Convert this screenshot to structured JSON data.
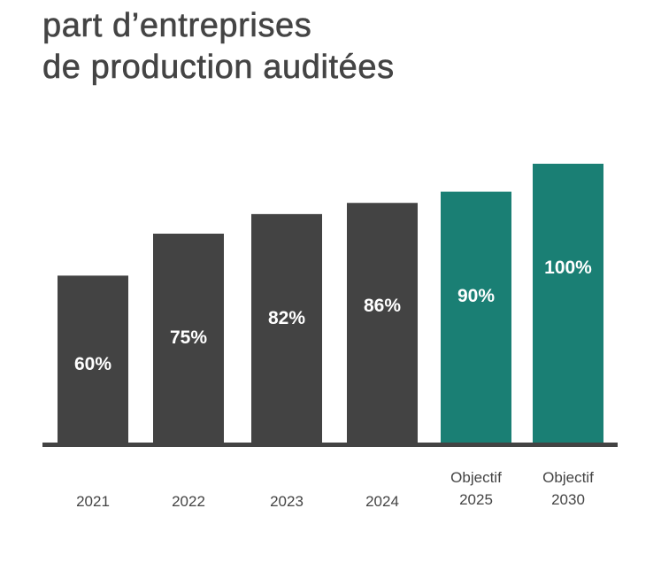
{
  "chart_data": {
    "type": "bar",
    "title": [
      "part d’entreprises",
      "de production auditées"
    ],
    "categories": [
      [
        "2021"
      ],
      [
        "2022"
      ],
      [
        "2023"
      ],
      [
        "2024"
      ],
      [
        "Objectif",
        "2025"
      ],
      [
        "Objectif",
        "2030"
      ]
    ],
    "values": [
      60,
      75,
      82,
      86,
      90,
      100
    ],
    "value_labels": [
      "60%",
      "75%",
      "82%",
      "86%",
      "90%",
      "100%"
    ],
    "ylim": [
      0,
      100
    ],
    "grid": false,
    "legend": "none",
    "colors": {
      "actual": "#434343",
      "target": "#1a7f74",
      "axis": "#434343",
      "title": "#444444",
      "category_text": "#444444",
      "value_text": "#ffffff"
    },
    "bar_kind": [
      "actual",
      "actual",
      "actual",
      "actual",
      "target",
      "target"
    ]
  }
}
